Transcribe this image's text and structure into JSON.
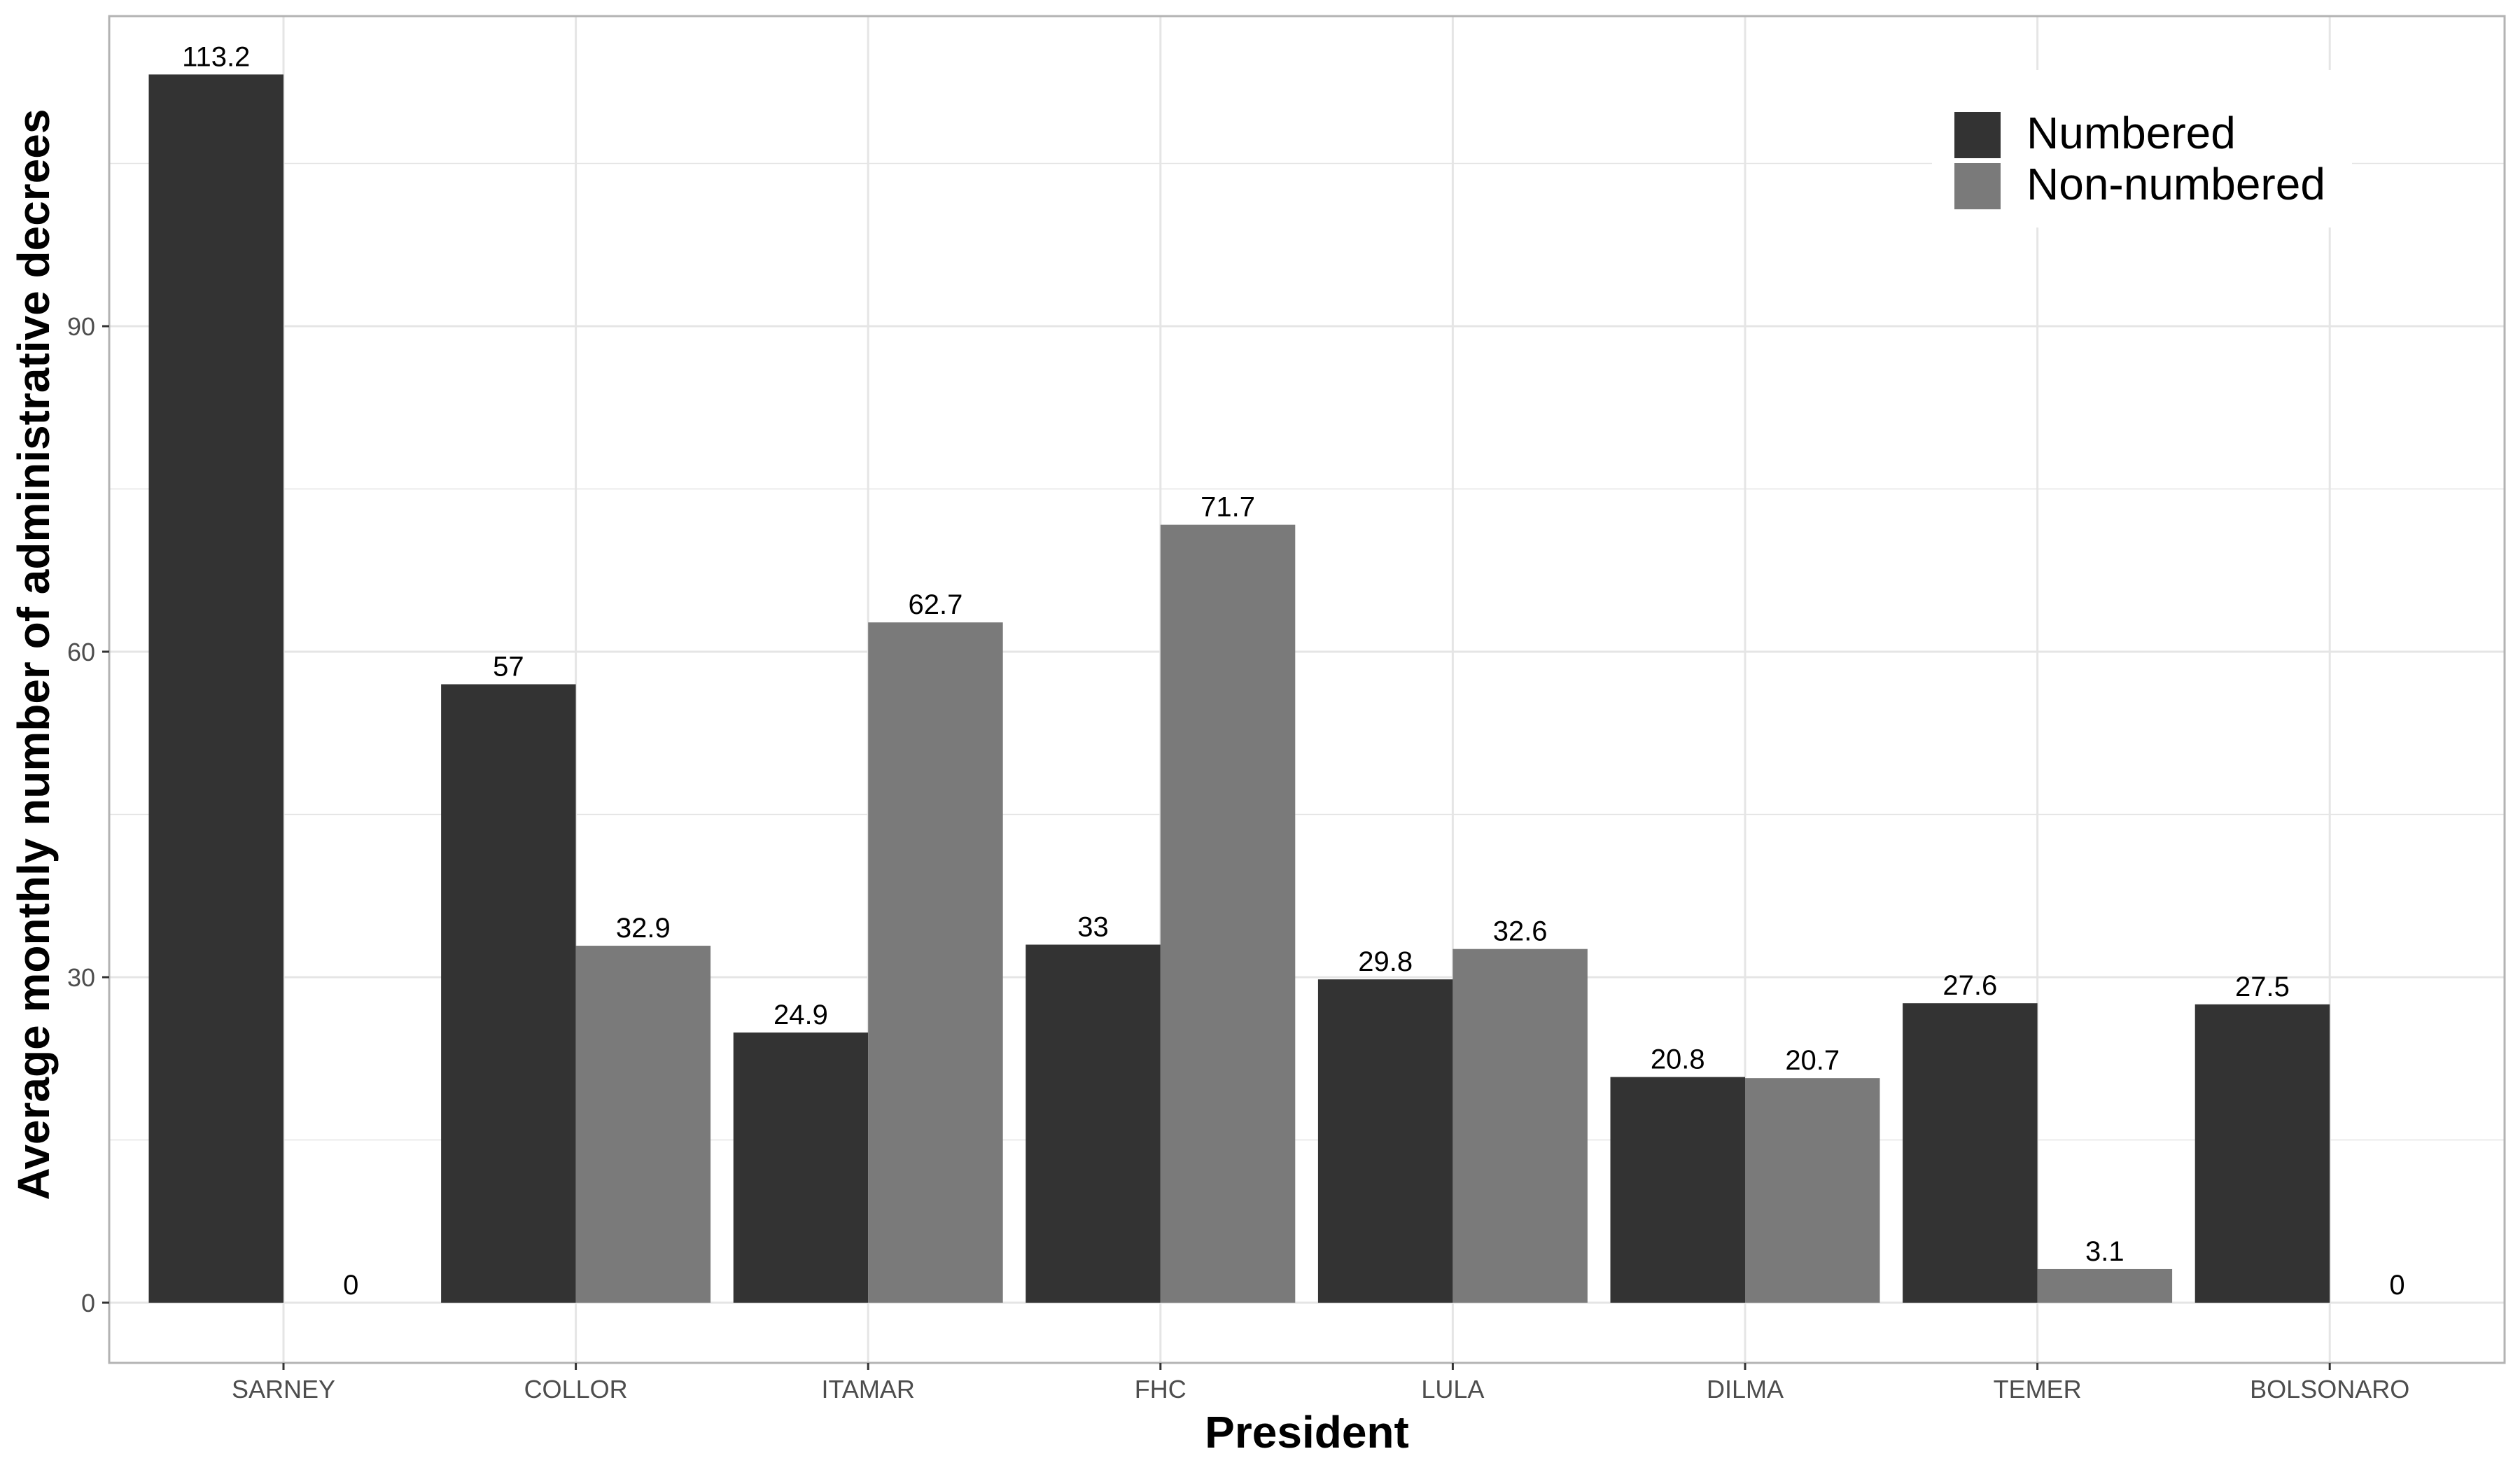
{
  "chart_data": {
    "type": "bar",
    "title": "",
    "xlabel": "President",
    "ylabel": "Average monthly number of administrative decrees",
    "categories": [
      "SARNEY",
      "COLLOR",
      "ITAMAR",
      "FHC",
      "LULA",
      "DILMA",
      "TEMER",
      "BOLSONARO"
    ],
    "series": [
      {
        "name": "Numbered",
        "color": "#333333",
        "values": [
          113.2,
          57,
          24.9,
          33,
          29.8,
          20.8,
          27.6,
          27.5
        ],
        "labels": [
          "113.2",
          "57",
          "24.9",
          "33",
          "29.8",
          "20.8",
          "27.6",
          "27.5"
        ]
      },
      {
        "name": "Non-numbered",
        "color": "#7a7a7a",
        "values": [
          0,
          32.9,
          62.7,
          71.7,
          32.6,
          20.7,
          3.1,
          0
        ],
        "labels": [
          "0",
          "32.9",
          "62.7",
          "71.7",
          "32.6",
          "20.7",
          "3.1",
          "0"
        ]
      }
    ],
    "yticks": [
      0,
      30,
      60,
      90
    ],
    "ytick_labels": [
      "0",
      "30",
      "60",
      "90"
    ],
    "ylim": [
      -5.5,
      118.9
    ],
    "grid": true,
    "legend_position": "top-right",
    "panel_border": "#b3b3b3",
    "grid_color": "#e5e5e5"
  }
}
